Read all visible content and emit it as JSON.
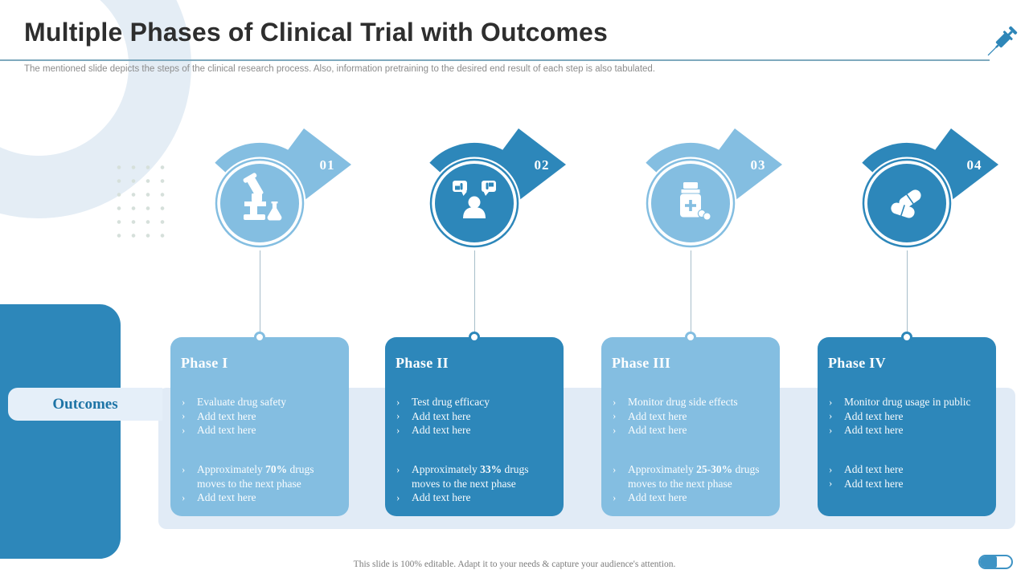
{
  "slide": {
    "title": "Multiple Phases of Clinical Trial with Outcomes",
    "subtitle": "The mentioned slide depicts the steps of the clinical research process. Also, information pretraining to the desired end result of each step is also tabulated.",
    "outcomes_label": "Outcomes",
    "footer": "This slide is 100% editable. Adapt it to your needs & capture your audience's attention.",
    "bullet_marker": "›"
  },
  "colors": {
    "accent_dark": "#2D87BA",
    "accent_light": "#84BEE1",
    "band": "#E1EBF6",
    "band_label": "#1E74A6",
    "title_text": "#2E2E2E",
    "subtitle_text": "#8C8C8C",
    "divider": "#7FA9BE",
    "connector": "#A7BECA",
    "syringe": "#2E86B8",
    "capsule": "#3E93C4"
  },
  "phases": [
    {
      "number": "01",
      "title": "Phase I",
      "theme": "light",
      "icon": "microscope-icon",
      "bullets_top": [
        "Evaluate drug safety",
        "Add text here",
        "Add text here"
      ],
      "bullets_bottom": [
        [
          {
            "t": "Approximately ",
            "b": false
          },
          {
            "t": "70%",
            "b": true
          },
          {
            "t": " drugs moves to the next phase",
            "b": false
          }
        ],
        [
          {
            "t": "Add text here",
            "b": false
          }
        ]
      ]
    },
    {
      "number": "02",
      "title": "Phase II",
      "theme": "dark",
      "icon": "feedback-person-icon",
      "bullets_top": [
        "Test drug efficacy",
        "Add text here",
        "Add text here"
      ],
      "bullets_bottom": [
        [
          {
            "t": "Approximately ",
            "b": false
          },
          {
            "t": "33%",
            "b": true
          },
          {
            "t": " drugs moves to the next phase",
            "b": false
          }
        ],
        [
          {
            "t": "Add text here",
            "b": false
          }
        ]
      ]
    },
    {
      "number": "03",
      "title": "Phase III",
      "theme": "light",
      "icon": "medicine-bottle-icon",
      "bullets_top": [
        "Monitor drug side effects",
        "Add text here",
        "Add text here"
      ],
      "bullets_bottom": [
        [
          {
            "t": "Approximately ",
            "b": false
          },
          {
            "t": "25-30%",
            "b": true
          },
          {
            "t": " drugs moves to the next phase",
            "b": false
          }
        ],
        [
          {
            "t": "Add text here",
            "b": false
          }
        ]
      ]
    },
    {
      "number": "04",
      "title": "Phase IV",
      "theme": "dark",
      "icon": "pills-icon",
      "bullets_top": [
        "Monitor drug usage in public",
        "Add text here",
        "Add text here"
      ],
      "bullets_bottom": [
        [
          {
            "t": "Add text here",
            "b": false
          }
        ],
        [
          {
            "t": "Add text here",
            "b": false
          }
        ]
      ]
    }
  ]
}
